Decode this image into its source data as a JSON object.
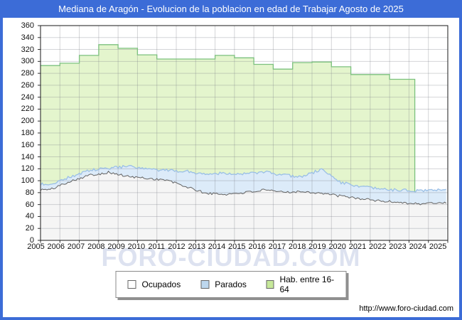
{
  "title": "Mediana de Aragón - Evolucion de la poblacion en edad de Trabajar Agosto de 2025",
  "watermark": "FORO-CIUDAD.COM",
  "footer": {
    "url": "http://www.foro-ciudad.com"
  },
  "colors": {
    "frame_blue": "#3c6cd7",
    "title_text": "#ffffff",
    "grid": "rgba(120,125,135,0.32)",
    "axis_border": "#1a1a1a",
    "green_fill": "#e4f5cd",
    "green_line": "#7cc17e",
    "blue_fill": "#dcebf9",
    "blue_line": "#9abfe6",
    "gray_fill": "#f5f5f5",
    "gray_line": "#636363"
  },
  "legend": {
    "items": [
      {
        "label": "Ocupados",
        "swatch": "#ffffff"
      },
      {
        "label": "Parados",
        "swatch": "#bdd7ee"
      },
      {
        "label": "Hab. entre 16-64",
        "swatch": "#c6e89a"
      }
    ]
  },
  "chart_data": {
    "type": "area",
    "title": "Mediana de Aragón - Evolucion de la poblacion en edad de Trabajar Agosto de 2025",
    "x_years": [
      2005,
      2006,
      2007,
      2008,
      2009,
      2010,
      2011,
      2012,
      2013,
      2014,
      2015,
      2016,
      2017,
      2018,
      2019,
      2020,
      2021,
      2022,
      2023,
      2024,
      2025
    ],
    "y_ticks": [
      0,
      20,
      40,
      60,
      80,
      100,
      120,
      140,
      160,
      180,
      200,
      220,
      240,
      260,
      280,
      300,
      320,
      340,
      360
    ],
    "ylim": [
      0,
      360
    ],
    "grid": true,
    "legend_position": "bottom-center",
    "series": [
      {
        "name": "Ocupados",
        "render": "jagged-monthly-area",
        "yearly_values": [
          85,
          99,
          109,
          114,
          107,
          104,
          101,
          90,
          79,
          77,
          80,
          84,
          81,
          82,
          79,
          74,
          70,
          66,
          64,
          61,
          63
        ]
      },
      {
        "name": "Parados",
        "render": "jagged-monthly-band-stacked-on-Ocupados",
        "yearly_values": [
          9,
          7,
          8,
          7,
          17,
          15,
          16,
          26,
          32,
          36,
          31,
          31,
          28,
          25,
          40,
          23,
          20,
          20,
          20,
          22,
          22
        ]
      },
      {
        "name": "Hab. entre 16-64",
        "render": "yearly-step-area",
        "yearly_values": [
          293,
          297,
          310,
          328,
          322,
          311,
          304,
          304,
          304,
          310,
          306,
          295,
          287,
          298,
          299,
          291,
          278,
          278,
          270,
          270,
          null
        ],
        "data_end_x": 2024.3
      }
    ]
  }
}
